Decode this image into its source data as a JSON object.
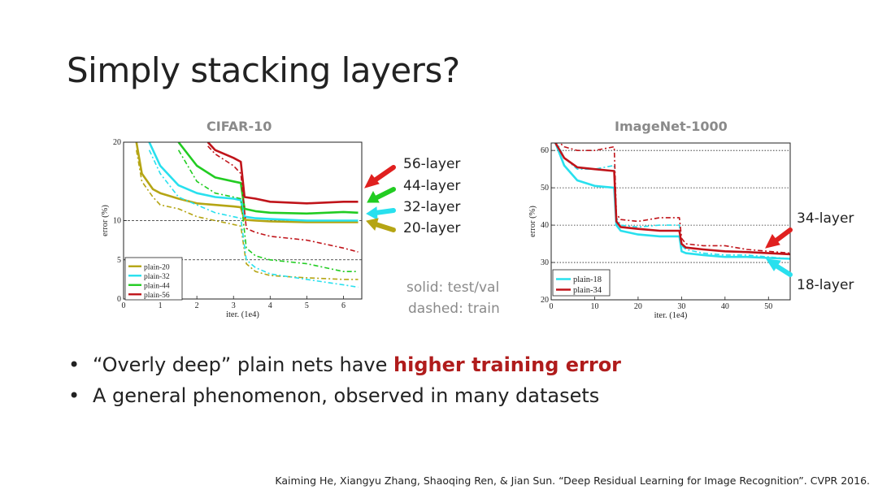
{
  "slide": {
    "title": "Simply stacking layers?",
    "bullets": [
      {
        "prefix": "“Overly deep” plain nets have ",
        "emphasis": "higher training error",
        "suffix": ""
      },
      {
        "prefix": "A general phenomenon, observed in many datasets",
        "emphasis": "",
        "suffix": ""
      }
    ],
    "legend_note": {
      "solid": "solid: test/val",
      "dashed": "dashed: train"
    },
    "citation": "Kaiming He, Xiangyu Zhang, Shaoqing Ren, & Jian Sun. “Deep Residual Learning for Image Recognition”. CVPR 2016.",
    "colors": {
      "emphasis": "#b01c1c",
      "muted": "#8a8a8a"
    }
  },
  "cifar_annotations": [
    {
      "label": "56-layer",
      "color": "#e0201f"
    },
    {
      "label": "44-layer",
      "color": "#22cc22"
    },
    {
      "label": "32-layer",
      "color": "#28e0ee"
    },
    {
      "label": "20-layer",
      "color": "#b5a514"
    }
  ],
  "imagenet_annotations": [
    {
      "label": "34-layer",
      "color": "#e0201f"
    },
    {
      "label": "18-layer",
      "color": "#28e0ee"
    }
  ],
  "chart_data": [
    {
      "type": "line",
      "title": "CIFAR-10",
      "xlabel": "iter. (1e4)",
      "ylabel": "error (%)",
      "xlim": [
        0,
        6.5
      ],
      "ylim": [
        0,
        20
      ],
      "xticks": [
        0,
        1,
        2,
        3,
        4,
        5,
        6
      ],
      "yticks": [
        0,
        5,
        10,
        20
      ],
      "grid": "dashed horizontal at 10 and 5",
      "legend_position": "bottom-left",
      "series": [
        {
          "name": "plain-20",
          "color": "#b5a514",
          "style": "solid",
          "x": [
            0.35,
            0.5,
            0.8,
            1.0,
            1.5,
            2.0,
            2.5,
            3.0,
            3.2,
            3.3,
            3.6,
            4.0,
            5.0,
            6.0,
            6.4
          ],
          "y": [
            20,
            16.0,
            14.0,
            13.5,
            12.8,
            12.2,
            12.0,
            11.8,
            11.7,
            10.1,
            10.0,
            9.9,
            9.8,
            9.8,
            9.8
          ]
        },
        {
          "name": "plain-20",
          "color": "#b5a514",
          "style": "dashed",
          "x": [
            0.35,
            0.5,
            0.8,
            1.0,
            1.5,
            2.0,
            2.5,
            3.0,
            3.2,
            3.35,
            3.6,
            4.0,
            5.0,
            6.0,
            6.4
          ],
          "y": [
            19,
            15.0,
            13.0,
            12.0,
            11.5,
            10.5,
            10.0,
            9.5,
            9.3,
            4.5,
            3.5,
            3.0,
            2.7,
            2.5,
            2.5
          ]
        },
        {
          "name": "plain-32",
          "color": "#28e0ee",
          "style": "solid",
          "x": [
            0.7,
            1.0,
            1.5,
            2.0,
            2.5,
            3.0,
            3.2,
            3.3,
            3.6,
            4.0,
            5.0,
            6.0,
            6.4
          ],
          "y": [
            20,
            17.0,
            14.5,
            13.5,
            13.0,
            12.8,
            12.6,
            10.5,
            10.3,
            10.2,
            10.0,
            10.0,
            10.0
          ]
        },
        {
          "name": "plain-32",
          "color": "#28e0ee",
          "style": "dashed",
          "x": [
            0.7,
            1.0,
            1.5,
            2.0,
            2.5,
            3.0,
            3.2,
            3.35,
            3.6,
            4.0,
            5.0,
            6.0,
            6.4
          ],
          "y": [
            19,
            16.0,
            13.0,
            12.0,
            11.0,
            10.5,
            10.3,
            5.0,
            4.0,
            3.2,
            2.5,
            1.8,
            1.5
          ]
        },
        {
          "name": "plain-44",
          "color": "#22cc22",
          "style": "solid",
          "x": [
            1.5,
            2.0,
            2.5,
            3.0,
            3.2,
            3.3,
            3.6,
            4.0,
            5.0,
            6.0,
            6.4
          ],
          "y": [
            20,
            17.0,
            15.5,
            15.0,
            14.8,
            11.5,
            11.2,
            11.0,
            10.9,
            11.1,
            11.0
          ]
        },
        {
          "name": "plain-44",
          "color": "#22cc22",
          "style": "dashed",
          "x": [
            1.5,
            2.0,
            2.5,
            3.0,
            3.2,
            3.35,
            3.6,
            4.0,
            5.0,
            6.0,
            6.4
          ],
          "y": [
            19,
            15.0,
            13.5,
            13.0,
            12.8,
            6.5,
            5.5,
            5.0,
            4.5,
            3.5,
            3.5
          ]
        },
        {
          "name": "plain-56",
          "color": "#c0141a",
          "style": "solid",
          "x": [
            2.3,
            2.5,
            3.0,
            3.2,
            3.3,
            3.6,
            4.0,
            5.0,
            6.0,
            6.4
          ],
          "y": [
            20,
            19.0,
            18.0,
            17.5,
            13.0,
            12.8,
            12.4,
            12.2,
            12.4,
            12.4
          ]
        },
        {
          "name": "plain-56",
          "color": "#c0141a",
          "style": "dashed",
          "x": [
            2.3,
            2.5,
            3.0,
            3.2,
            3.35,
            3.6,
            4.0,
            5.0,
            6.0,
            6.4
          ],
          "y": [
            19.5,
            18.5,
            17.0,
            16.0,
            9.0,
            8.5,
            8.0,
            7.5,
            6.5,
            6.0
          ]
        }
      ]
    },
    {
      "type": "line",
      "title": "ImageNet-1000",
      "xlabel": "iter. (1e4)",
      "ylabel": "error (%)",
      "xlim": [
        0,
        55
      ],
      "ylim": [
        20,
        62
      ],
      "xticks": [
        0,
        10,
        20,
        30,
        40,
        50
      ],
      "yticks": [
        20,
        30,
        40,
        50,
        60
      ],
      "grid": "dotted horizontal at 30, 40, 50, 60",
      "legend_position": "bottom-left",
      "series": [
        {
          "name": "plain-18",
          "color": "#28e0ee",
          "style": "solid",
          "x": [
            1,
            3,
            6,
            10,
            14.5,
            15,
            16,
            20,
            25,
            29.5,
            30,
            31,
            35,
            40,
            45,
            50,
            55
          ],
          "y": [
            62,
            56,
            52,
            50.5,
            50,
            40,
            38.5,
            37.5,
            37,
            37,
            33,
            32.5,
            32,
            31.5,
            31.5,
            31.2,
            31
          ]
        },
        {
          "name": "plain-18",
          "color": "#28e0ee",
          "style": "dashed",
          "x": [
            1,
            3,
            6,
            10,
            14.5,
            15,
            16,
            20,
            25,
            29.5,
            30,
            31,
            35,
            40,
            45,
            50,
            55
          ],
          "y": [
            63,
            58,
            55,
            55,
            56,
            42,
            40,
            39.5,
            40,
            40,
            34.5,
            33.5,
            32.5,
            32,
            32,
            31.5,
            31
          ]
        },
        {
          "name": "plain-34",
          "color": "#c0141a",
          "style": "solid",
          "x": [
            1,
            3,
            6,
            10,
            14.5,
            15,
            16,
            20,
            25,
            29.5,
            30,
            31,
            35,
            40,
            45,
            50,
            55
          ],
          "y": [
            62,
            58,
            55.5,
            55,
            54.5,
            41,
            39.5,
            39,
            38.5,
            38.5,
            35,
            34,
            33.5,
            33,
            32.8,
            32.5,
            32.2
          ]
        },
        {
          "name": "plain-34",
          "color": "#c0141a",
          "style": "dashed",
          "x": [
            1,
            3,
            6,
            10,
            14.5,
            15,
            16,
            20,
            25,
            29.5,
            30,
            31,
            35,
            40,
            45,
            50,
            55
          ],
          "y": [
            63,
            61,
            60,
            60,
            61,
            43,
            41.5,
            41,
            42,
            42,
            36.5,
            35,
            34.5,
            34.5,
            33.5,
            33,
            32.5
          ]
        }
      ]
    }
  ]
}
